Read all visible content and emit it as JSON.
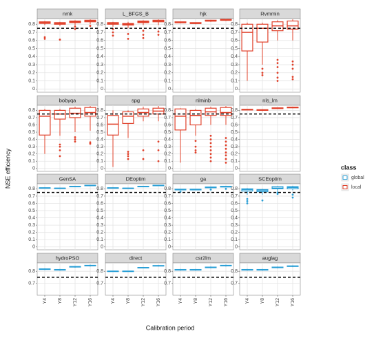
{
  "y_label": "NSE efficiency",
  "x_label": "Calibration period",
  "categories": [
    "Y4",
    "Y8",
    "Y12",
    "Y16"
  ],
  "legend": {
    "title": "class",
    "items": [
      {
        "name": "global",
        "color": "#2a9fd6"
      },
      {
        "name": "local",
        "color": "#e0402a"
      }
    ]
  },
  "chart_data": [
    {
      "type": "box",
      "title": "nmk",
      "color": "#e0402a",
      "ylim": [
        -0.04,
        0.87
      ],
      "yticks": [
        0.0,
        0.1,
        0.2,
        0.3,
        0.4,
        0.5,
        0.6,
        0.7,
        0.8
      ],
      "ref_line": 0.75,
      "boxes": [
        {
          "min": 0.79,
          "q1": 0.81,
          "median": 0.82,
          "q3": 0.83,
          "max": 0.84,
          "outliers": [
            0.62,
            0.64
          ]
        },
        {
          "min": 0.78,
          "q1": 0.8,
          "median": 0.81,
          "q3": 0.82,
          "max": 0.83,
          "outliers": [
            0.61
          ]
        },
        {
          "min": 0.78,
          "q1": 0.82,
          "median": 0.83,
          "q3": 0.84,
          "max": 0.85,
          "outliers": [
            0.74,
            0.77
          ]
        },
        {
          "min": 0.8,
          "q1": 0.83,
          "median": 0.84,
          "q3": 0.85,
          "max": 0.86,
          "outliers": [
            0.78
          ]
        }
      ]
    },
    {
      "type": "box",
      "title": "L_BFGS_B",
      "color": "#e0402a",
      "ylim": [
        -0.04,
        0.87
      ],
      "yticks": [
        0.0,
        0.1,
        0.2,
        0.3,
        0.4,
        0.5,
        0.6,
        0.7,
        0.8
      ],
      "ref_line": 0.75,
      "boxes": [
        {
          "min": 0.77,
          "q1": 0.8,
          "median": 0.81,
          "q3": 0.82,
          "max": 0.83,
          "outliers": [
            0.66,
            0.7,
            0.74
          ]
        },
        {
          "min": 0.75,
          "q1": 0.79,
          "median": 0.8,
          "q3": 0.81,
          "max": 0.83,
          "outliers": [
            0.62,
            0.68
          ]
        },
        {
          "min": 0.79,
          "q1": 0.82,
          "median": 0.83,
          "q3": 0.84,
          "max": 0.85,
          "outliers": [
            0.63,
            0.67,
            0.72
          ]
        },
        {
          "min": 0.79,
          "q1": 0.83,
          "median": 0.84,
          "q3": 0.85,
          "max": 0.86,
          "outliers": [
            0.67,
            0.71
          ]
        }
      ]
    },
    {
      "type": "box",
      "title": "hjk",
      "color": "#e0402a",
      "ylim": [
        -0.04,
        0.87
      ],
      "yticks": [
        0.0,
        0.1,
        0.2,
        0.3,
        0.4,
        0.5,
        0.6,
        0.7,
        0.8
      ],
      "ref_line": 0.75,
      "boxes": [
        {
          "min": 0.81,
          "q1": 0.82,
          "median": 0.82,
          "q3": 0.83,
          "max": 0.83,
          "outliers": []
        },
        {
          "min": 0.8,
          "q1": 0.81,
          "median": 0.81,
          "q3": 0.82,
          "max": 0.82,
          "outliers": []
        },
        {
          "min": 0.83,
          "q1": 0.84,
          "median": 0.84,
          "q3": 0.85,
          "max": 0.85,
          "outliers": []
        },
        {
          "min": 0.84,
          "q1": 0.85,
          "median": 0.85,
          "q3": 0.86,
          "max": 0.86,
          "outliers": []
        }
      ]
    },
    {
      "type": "box",
      "title": "Rvmmin",
      "color": "#e0402a",
      "ylim": [
        -0.04,
        0.87
      ],
      "yticks": [
        0.0,
        0.1,
        0.2,
        0.3,
        0.4,
        0.5,
        0.6,
        0.7,
        0.8
      ],
      "ref_line": 0.75,
      "boxes": [
        {
          "min": 0.1,
          "q1": 0.47,
          "median": 0.7,
          "q3": 0.8,
          "max": 0.82,
          "outliers": []
        },
        {
          "min": 0.3,
          "q1": 0.58,
          "median": 0.75,
          "q3": 0.8,
          "max": 0.82,
          "outliers": [
            0.17,
            0.2,
            0.25
          ]
        },
        {
          "min": 0.6,
          "q1": 0.72,
          "median": 0.78,
          "q3": 0.83,
          "max": 0.85,
          "outliers": [
            0.1,
            0.14,
            0.2,
            0.27,
            0.32,
            0.36
          ]
        },
        {
          "min": 0.6,
          "q1": 0.74,
          "median": 0.78,
          "q3": 0.84,
          "max": 0.86,
          "outliers": [
            0.12,
            0.15,
            0.25,
            0.3,
            0.34
          ]
        }
      ]
    },
    {
      "type": "box",
      "title": "bobyqa",
      "color": "#e0402a",
      "ylim": [
        -0.04,
        0.87
      ],
      "yticks": [
        0.0,
        0.1,
        0.2,
        0.3,
        0.4,
        0.5,
        0.6,
        0.7,
        0.8
      ],
      "ref_line": 0.75,
      "boxes": [
        {
          "min": 0.2,
          "q1": 0.46,
          "median": 0.72,
          "q3": 0.8,
          "max": 0.82,
          "outliers": []
        },
        {
          "min": 0.45,
          "q1": 0.68,
          "median": 0.75,
          "q3": 0.8,
          "max": 0.82,
          "outliers": [
            0.17,
            0.25,
            0.3,
            0.33
          ]
        },
        {
          "min": 0.5,
          "q1": 0.7,
          "median": 0.76,
          "q3": 0.83,
          "max": 0.85,
          "outliers": [
            0.37,
            0.4,
            0.43
          ]
        },
        {
          "min": 0.52,
          "q1": 0.72,
          "median": 0.77,
          "q3": 0.84,
          "max": 0.86,
          "outliers": [
            0.34,
            0.36
          ]
        }
      ]
    },
    {
      "type": "box",
      "title": "spg",
      "color": "#e0402a",
      "ylim": [
        -0.04,
        0.87
      ],
      "yticks": [
        0.0,
        0.1,
        0.2,
        0.3,
        0.4,
        0.5,
        0.6,
        0.7,
        0.8
      ],
      "ref_line": 0.75,
      "boxes": [
        {
          "min": 0.02,
          "q1": 0.46,
          "median": 0.61,
          "q3": 0.73,
          "max": 0.8,
          "outliers": []
        },
        {
          "min": 0.42,
          "q1": 0.62,
          "median": 0.72,
          "q3": 0.78,
          "max": 0.8,
          "outliers": [
            0.13,
            0.17,
            0.2,
            0.23
          ]
        },
        {
          "min": 0.65,
          "q1": 0.72,
          "median": 0.77,
          "q3": 0.82,
          "max": 0.85,
          "outliers": [
            0.13,
            0.25
          ]
        },
        {
          "min": 0.65,
          "q1": 0.75,
          "median": 0.79,
          "q3": 0.83,
          "max": 0.86,
          "outliers": [
            0.1,
            0.25,
            0.37
          ]
        }
      ]
    },
    {
      "type": "box",
      "title": "nlminb",
      "color": "#e0402a",
      "ylim": [
        -0.04,
        0.87
      ],
      "yticks": [
        0.0,
        0.1,
        0.2,
        0.3,
        0.4,
        0.5,
        0.6,
        0.7,
        0.8
      ],
      "ref_line": 0.75,
      "boxes": [
        {
          "min": 0.08,
          "q1": 0.53,
          "median": 0.72,
          "q3": 0.82,
          "max": 0.83,
          "outliers": []
        },
        {
          "min": 0.45,
          "q1": 0.6,
          "median": 0.73,
          "q3": 0.8,
          "max": 0.82,
          "outliers": [
            0.22,
            0.25,
            0.3,
            0.38
          ]
        },
        {
          "min": 0.6,
          "q1": 0.73,
          "median": 0.78,
          "q3": 0.83,
          "max": 0.85,
          "outliers": [
            0.1,
            0.15,
            0.2,
            0.25,
            0.3,
            0.35,
            0.4,
            0.45
          ]
        },
        {
          "min": 0.6,
          "q1": 0.73,
          "median": 0.77,
          "q3": 0.84,
          "max": 0.86,
          "outliers": [
            0.08,
            0.13,
            0.18,
            0.22,
            0.27,
            0.32,
            0.37,
            0.42
          ]
        }
      ]
    },
    {
      "type": "box",
      "title": "nls_lm",
      "color": "#e0402a",
      "ylim": [
        -0.04,
        0.87
      ],
      "yticks": [
        0.0,
        0.1,
        0.2,
        0.3,
        0.4,
        0.5,
        0.6,
        0.7,
        0.8
      ],
      "ref_line": 0.75,
      "boxes": [
        {
          "min": 0.8,
          "q1": 0.805,
          "median": 0.81,
          "q3": 0.815,
          "max": 0.82,
          "outliers": []
        },
        {
          "min": 0.79,
          "q1": 0.8,
          "median": 0.805,
          "q3": 0.81,
          "max": 0.815,
          "outliers": []
        },
        {
          "min": 0.82,
          "q1": 0.825,
          "median": 0.83,
          "q3": 0.835,
          "max": 0.84,
          "outliers": []
        },
        {
          "min": 0.83,
          "q1": 0.835,
          "median": 0.84,
          "q3": 0.845,
          "max": 0.85,
          "outliers": []
        }
      ]
    },
    {
      "type": "box",
      "title": "GenSA",
      "color": "#2a9fd6",
      "ylim": [
        -0.04,
        0.87
      ],
      "yticks": [
        0.0,
        0.1,
        0.2,
        0.3,
        0.4,
        0.5,
        0.6,
        0.7,
        0.8
      ],
      "ref_line": 0.75,
      "boxes": [
        {
          "min": 0.805,
          "q1": 0.81,
          "median": 0.812,
          "q3": 0.815,
          "max": 0.82,
          "outliers": []
        },
        {
          "min": 0.8,
          "q1": 0.805,
          "median": 0.808,
          "q3": 0.81,
          "max": 0.815,
          "outliers": []
        },
        {
          "min": 0.825,
          "q1": 0.83,
          "median": 0.832,
          "q3": 0.835,
          "max": 0.84,
          "outliers": []
        },
        {
          "min": 0.84,
          "q1": 0.845,
          "median": 0.848,
          "q3": 0.85,
          "max": 0.855,
          "outliers": []
        }
      ]
    },
    {
      "type": "box",
      "title": "DEoptim",
      "color": "#2a9fd6",
      "ylim": [
        -0.04,
        0.87
      ],
      "yticks": [
        0.0,
        0.1,
        0.2,
        0.3,
        0.4,
        0.5,
        0.6,
        0.7,
        0.8
      ],
      "ref_line": 0.75,
      "boxes": [
        {
          "min": 0.805,
          "q1": 0.81,
          "median": 0.812,
          "q3": 0.815,
          "max": 0.82,
          "outliers": []
        },
        {
          "min": 0.8,
          "q1": 0.805,
          "median": 0.808,
          "q3": 0.81,
          "max": 0.815,
          "outliers": []
        },
        {
          "min": 0.825,
          "q1": 0.83,
          "median": 0.832,
          "q3": 0.835,
          "max": 0.84,
          "outliers": []
        },
        {
          "min": 0.84,
          "q1": 0.845,
          "median": 0.848,
          "q3": 0.85,
          "max": 0.855,
          "outliers": []
        }
      ]
    },
    {
      "type": "box",
      "title": "ga",
      "color": "#2a9fd6",
      "ylim": [
        -0.04,
        0.87
      ],
      "yticks": [
        0.0,
        0.1,
        0.2,
        0.3,
        0.4,
        0.5,
        0.6,
        0.7,
        0.8
      ],
      "ref_line": 0.75,
      "boxes": [
        {
          "min": 0.78,
          "q1": 0.785,
          "median": 0.79,
          "q3": 0.795,
          "max": 0.8,
          "outliers": [
            0.76
          ]
        },
        {
          "min": 0.78,
          "q1": 0.785,
          "median": 0.79,
          "q3": 0.795,
          "max": 0.8,
          "outliers": []
        },
        {
          "min": 0.81,
          "q1": 0.815,
          "median": 0.82,
          "q3": 0.825,
          "max": 0.83,
          "outliers": [
            0.79
          ]
        },
        {
          "min": 0.82,
          "q1": 0.825,
          "median": 0.83,
          "q3": 0.835,
          "max": 0.84,
          "outliers": [
            0.8
          ]
        }
      ]
    },
    {
      "type": "box",
      "title": "SCEoptim",
      "color": "#2a9fd6",
      "ylim": [
        -0.04,
        0.87
      ],
      "yticks": [
        0.0,
        0.1,
        0.2,
        0.3,
        0.4,
        0.5,
        0.6,
        0.7,
        0.8
      ],
      "ref_line": 0.75,
      "boxes": [
        {
          "min": 0.72,
          "q1": 0.77,
          "median": 0.79,
          "q3": 0.8,
          "max": 0.81,
          "outliers": [
            0.6,
            0.63,
            0.66
          ]
        },
        {
          "min": 0.72,
          "q1": 0.76,
          "median": 0.78,
          "q3": 0.79,
          "max": 0.8,
          "outliers": [
            0.64
          ]
        },
        {
          "min": 0.77,
          "q1": 0.8,
          "median": 0.81,
          "q3": 0.83,
          "max": 0.84,
          "outliers": [
            0.73,
            0.75
          ]
        },
        {
          "min": 0.78,
          "q1": 0.8,
          "median": 0.82,
          "q3": 0.83,
          "max": 0.84,
          "outliers": [
            0.68,
            0.72
          ]
        }
      ]
    },
    {
      "type": "box",
      "title": "hydroPSO",
      "color": "#2a9fd6",
      "ylim": [
        0.6,
        0.87
      ],
      "yticks": [
        0.7,
        0.8
      ],
      "ref_line": 0.75,
      "boxes": [
        {
          "min": 0.81,
          "q1": 0.815,
          "median": 0.818,
          "q3": 0.82,
          "max": 0.825,
          "outliers": []
        },
        {
          "min": 0.805,
          "q1": 0.81,
          "median": 0.812,
          "q3": 0.815,
          "max": 0.82,
          "outliers": []
        },
        {
          "min": 0.83,
          "q1": 0.835,
          "median": 0.838,
          "q3": 0.84,
          "max": 0.845,
          "outliers": []
        },
        {
          "min": 0.84,
          "q1": 0.845,
          "median": 0.848,
          "q3": 0.85,
          "max": 0.855,
          "outliers": []
        }
      ]
    },
    {
      "type": "box",
      "title": "direct",
      "color": "#2a9fd6",
      "ylim": [
        0.6,
        0.87
      ],
      "yticks": [
        0.7,
        0.8
      ],
      "ref_line": 0.75,
      "boxes": [
        {
          "min": 0.795,
          "q1": 0.8,
          "median": 0.8,
          "q3": 0.802,
          "max": 0.805,
          "outliers": []
        },
        {
          "min": 0.795,
          "q1": 0.8,
          "median": 0.8,
          "q3": 0.802,
          "max": 0.805,
          "outliers": []
        },
        {
          "min": 0.825,
          "q1": 0.83,
          "median": 0.83,
          "q3": 0.832,
          "max": 0.835,
          "outliers": []
        },
        {
          "min": 0.84,
          "q1": 0.845,
          "median": 0.846,
          "q3": 0.848,
          "max": 0.852,
          "outliers": []
        }
      ]
    },
    {
      "type": "box",
      "title": "csr2lm",
      "color": "#2a9fd6",
      "ylim": [
        0.6,
        0.87
      ],
      "yticks": [
        0.7,
        0.8
      ],
      "ref_line": 0.75,
      "boxes": [
        {
          "min": 0.805,
          "q1": 0.81,
          "median": 0.812,
          "q3": 0.815,
          "max": 0.82,
          "outliers": []
        },
        {
          "min": 0.805,
          "q1": 0.81,
          "median": 0.812,
          "q3": 0.815,
          "max": 0.82,
          "outliers": []
        },
        {
          "min": 0.825,
          "q1": 0.83,
          "median": 0.832,
          "q3": 0.835,
          "max": 0.84,
          "outliers": []
        },
        {
          "min": 0.84,
          "q1": 0.845,
          "median": 0.848,
          "q3": 0.85,
          "max": 0.855,
          "outliers": []
        }
      ]
    },
    {
      "type": "box",
      "title": "auglag",
      "color": "#2a9fd6",
      "ylim": [
        0.6,
        0.87
      ],
      "yticks": [
        0.7,
        0.8
      ],
      "ref_line": 0.75,
      "boxes": [
        {
          "min": 0.805,
          "q1": 0.81,
          "median": 0.812,
          "q3": 0.815,
          "max": 0.82,
          "outliers": []
        },
        {
          "min": 0.805,
          "q1": 0.81,
          "median": 0.812,
          "q3": 0.815,
          "max": 0.82,
          "outliers": []
        },
        {
          "min": 0.825,
          "q1": 0.83,
          "median": 0.832,
          "q3": 0.835,
          "max": 0.84,
          "outliers": []
        },
        {
          "min": 0.835,
          "q1": 0.84,
          "median": 0.843,
          "q3": 0.845,
          "max": 0.85,
          "outliers": []
        }
      ]
    }
  ]
}
